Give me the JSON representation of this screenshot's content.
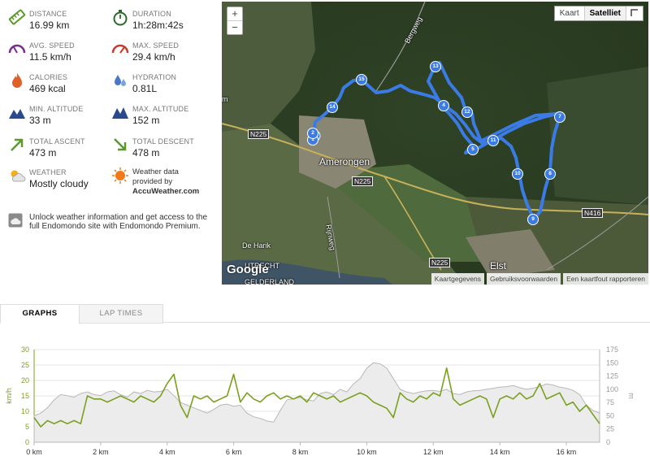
{
  "stats": {
    "distance": {
      "label": "DISTANCE",
      "value": "16.99 km",
      "icon": "ruler-icon"
    },
    "duration": {
      "label": "DURATION",
      "value": "1h:28m:42s",
      "icon": "stopwatch-icon"
    },
    "avg_speed": {
      "label": "AVG. SPEED",
      "value": "11.5 km/h",
      "icon": "speedometer-icon"
    },
    "max_speed": {
      "label": "MAX. SPEED",
      "value": "29.4 km/h",
      "icon": "speedometer-max-icon"
    },
    "calories": {
      "label": "CALORIES",
      "value": "469 kcal",
      "icon": "flame-icon"
    },
    "hydration": {
      "label": "HYDRATION",
      "value": "0.81L",
      "icon": "water-drops-icon"
    },
    "min_altitude": {
      "label": "MIN. ALTITUDE",
      "value": "33 m",
      "icon": "mountain-icon"
    },
    "max_altitude": {
      "label": "MAX. ALTITUDE",
      "value": "152 m",
      "icon": "mountain-peak-icon"
    },
    "total_ascent": {
      "label": "TOTAL ASCENT",
      "value": "473 m",
      "icon": "arrow-up-right-icon"
    },
    "total_descent": {
      "label": "TOTAL DESCENT",
      "value": "478 m",
      "icon": "arrow-down-right-icon"
    },
    "weather": {
      "label": "WEATHER",
      "value": "Mostly cloudy",
      "icon": "partly-cloudy-icon"
    },
    "weather_data": {
      "line1": "Weather data",
      "line2": "provided by",
      "brand": "AccuWeather.com",
      "icon": "accuweather-sun-icon"
    }
  },
  "premium_note": "Unlock weather information and get access to the full Endomondo site with Endomondo Premium.",
  "map": {
    "zoom_in": "+",
    "zoom_out": "−",
    "type_map": "Kaart",
    "type_satellite": "Satelliet",
    "attribution": [
      "Kaartgegevens",
      "Gebruiksvoorwaarden",
      "Een kaartfout rapporteren"
    ],
    "logo": "Google",
    "labels": {
      "town1": "Amerongen",
      "town2": "Elst",
      "river": "UTRECHT",
      "province": "GELDERLAND",
      "road_bergweg": "Bergweg",
      "road_rijnweg": "Rijnweg",
      "place_harik": "De Harik",
      "edge_m": "m"
    },
    "shields": {
      "n225_a": "N225",
      "n225_b": "N225",
      "n225_c": "N225",
      "n416": "N416"
    },
    "route_color": "#3b7be6",
    "markers": [
      "1",
      "2",
      "4",
      "5",
      "7",
      "8",
      "9",
      "10",
      "11",
      "12",
      "13",
      "14",
      "15"
    ]
  },
  "tabs": {
    "graphs": "GRAPHS",
    "lap_times": "LAP TIMES"
  },
  "chart_data": {
    "type": "line",
    "xlabel": "",
    "y_left_label": "km/h",
    "y_right_label": "m",
    "x_ticks": [
      "0 km",
      "2 km",
      "4 km",
      "6 km",
      "8 km",
      "10 km",
      "12 km",
      "14 km",
      "16 km"
    ],
    "y_left_ticks": [
      "0",
      "5",
      "10",
      "15",
      "20",
      "25",
      "30"
    ],
    "y_right_ticks": [
      "0",
      "25",
      "50",
      "75",
      "100",
      "125",
      "150",
      "175"
    ],
    "xlim": [
      0,
      17
    ],
    "y_left_lim": [
      0,
      30
    ],
    "y_right_lim": [
      0,
      175
    ],
    "speed_color": "#7aa020",
    "altitude_color": "#b8b8b8",
    "series": [
      {
        "name": "speed",
        "axis": "left",
        "x": [
          0,
          0.2,
          0.4,
          0.6,
          0.8,
          1.0,
          1.2,
          1.4,
          1.6,
          1.8,
          2.0,
          2.2,
          2.4,
          2.6,
          2.8,
          3.0,
          3.2,
          3.4,
          3.6,
          3.8,
          4.0,
          4.2,
          4.4,
          4.6,
          4.8,
          5.0,
          5.2,
          5.4,
          5.6,
          5.8,
          6.0,
          6.2,
          6.4,
          6.6,
          6.8,
          7.0,
          7.2,
          7.4,
          7.6,
          7.8,
          8.0,
          8.2,
          8.4,
          8.6,
          8.8,
          9.0,
          9.2,
          9.4,
          9.6,
          9.8,
          10.0,
          10.2,
          10.4,
          10.6,
          10.8,
          11.0,
          11.2,
          11.4,
          11.6,
          11.8,
          12.0,
          12.2,
          12.4,
          12.6,
          12.8,
          13.0,
          13.2,
          13.4,
          13.6,
          13.8,
          14.0,
          14.2,
          14.4,
          14.6,
          14.8,
          15.0,
          15.2,
          15.4,
          15.6,
          15.8,
          16.0,
          16.2,
          16.4,
          16.6,
          16.8,
          17.0
        ],
        "values": [
          8,
          5,
          7,
          6,
          7,
          6,
          7,
          6,
          15,
          14,
          14,
          13,
          14,
          15,
          14,
          13,
          15,
          14,
          13,
          15,
          19,
          22,
          12,
          8,
          15,
          14,
          15,
          13,
          14,
          15,
          22,
          13,
          16,
          14,
          13,
          15,
          16,
          14,
          15,
          14,
          15,
          13,
          16,
          15,
          14,
          15,
          13,
          14,
          15,
          16,
          15,
          13,
          12,
          11,
          8,
          16,
          14,
          13,
          15,
          14,
          16,
          15,
          24,
          14,
          12,
          13,
          14,
          15,
          14,
          8,
          14,
          15,
          14,
          16,
          14,
          15,
          19,
          14,
          15,
          16,
          12,
          13,
          10,
          12,
          9,
          6
        ]
      },
      {
        "name": "altitude",
        "axis": "right",
        "x": [
          0,
          0.2,
          0.4,
          0.6,
          0.8,
          1.0,
          1.2,
          1.4,
          1.6,
          1.8,
          2.0,
          2.2,
          2.4,
          2.6,
          2.8,
          3.0,
          3.2,
          3.4,
          3.6,
          3.8,
          4.0,
          4.2,
          4.4,
          4.6,
          4.8,
          5.0,
          5.2,
          5.4,
          5.6,
          5.8,
          6.0,
          6.2,
          6.4,
          6.6,
          6.8,
          7.0,
          7.2,
          7.4,
          7.6,
          7.8,
          8.0,
          8.2,
          8.4,
          8.6,
          8.8,
          9.0,
          9.2,
          9.4,
          9.6,
          9.8,
          10.0,
          10.2,
          10.4,
          10.6,
          10.8,
          11.0,
          11.2,
          11.4,
          11.6,
          11.8,
          12.0,
          12.2,
          12.4,
          12.6,
          12.8,
          13.0,
          13.2,
          13.4,
          13.6,
          13.8,
          14.0,
          14.2,
          14.4,
          14.6,
          14.8,
          15.0,
          15.2,
          15.4,
          15.6,
          15.8,
          16.0,
          16.2,
          16.4,
          16.6,
          16.8,
          17.0
        ],
        "values": [
          50,
          55,
          65,
          80,
          90,
          88,
          85,
          92,
          95,
          90,
          88,
          95,
          97,
          90,
          85,
          95,
          92,
          98,
          95,
          96,
          100,
          88,
          75,
          70,
          65,
          60,
          55,
          62,
          70,
          72,
          68,
          70,
          55,
          48,
          45,
          40,
          38,
          60,
          80,
          82,
          85,
          80,
          78,
          92,
          95,
          90,
          100,
          95,
          110,
          120,
          140,
          150,
          148,
          140,
          120,
          100,
          95,
          92,
          95,
          97,
          98,
          96,
          100,
          92,
          90,
          95,
          97,
          98,
          100,
          102,
          104,
          105,
          107,
          103,
          100,
          102,
          105,
          110,
          108,
          104,
          102,
          98,
          90,
          70,
          60,
          55
        ]
      }
    ]
  }
}
